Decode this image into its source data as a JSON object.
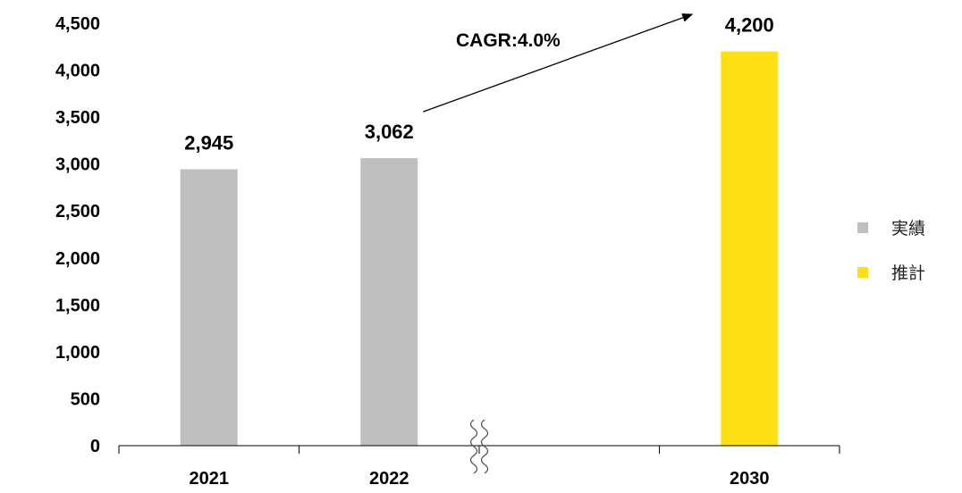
{
  "chart_data": {
    "type": "bar",
    "categories": [
      "2021",
      "2022",
      "",
      "2030"
    ],
    "values": [
      2945,
      3062,
      null,
      4200
    ],
    "data_labels": [
      "2,945",
      "3,062",
      "",
      "4,200"
    ],
    "bar_kinds": [
      "actual",
      "actual",
      "",
      "forecast"
    ],
    "ylim": [
      0,
      4500
    ],
    "yticks": [
      "0",
      "500",
      "1,000",
      "1,500",
      "2,000",
      "2,500",
      "3,000",
      "3,500",
      "4,000",
      "4,500"
    ],
    "ytick_values": [
      0,
      500,
      1000,
      1500,
      2000,
      2500,
      3000,
      3500,
      4000,
      4500
    ],
    "axis_break_after_category_index": 2,
    "annotation": {
      "text": "CAGR:4.0%",
      "from_category": "2022",
      "to_category": "2030"
    },
    "legend": {
      "placement": "right",
      "items": [
        {
          "key": "actual",
          "label": "実績",
          "color": "#bfbfbf"
        },
        {
          "key": "forecast",
          "label": "推計",
          "color": "#ffe014"
        }
      ]
    },
    "grid": false,
    "title": "",
    "xlabel": "",
    "ylabel": ""
  }
}
